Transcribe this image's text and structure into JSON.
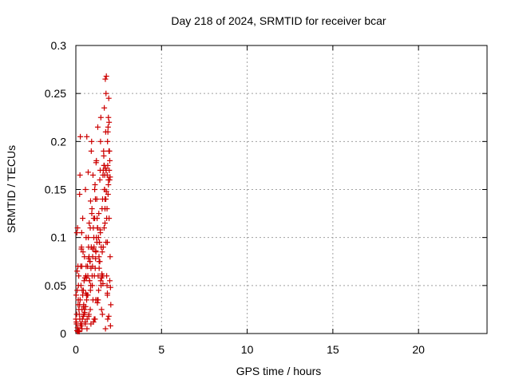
{
  "chart_data": {
    "type": "scatter",
    "title": "Day 218 of 2024, SRMTID for receiver bcar",
    "xlabel": "GPS time / hours",
    "ylabel": "SRMTID / TECUs",
    "xlim": [
      0,
      24
    ],
    "ylim": [
      0,
      0.3
    ],
    "x_ticks": [
      0,
      5,
      10,
      15,
      20
    ],
    "y_ticks": [
      0,
      0.05,
      0.1,
      0.15,
      0.2,
      0.25,
      0.3
    ],
    "x_tick_labels": [
      "0",
      "5",
      "10",
      "15",
      "20"
    ],
    "y_tick_labels": [
      "0",
      "0.05",
      "0.1",
      "0.15",
      "0.2",
      "0.25",
      "0.3"
    ],
    "grid": true,
    "marker": "plus",
    "color": "#cc0000",
    "series": [
      {
        "x": [
          0.0,
          0.02,
          0.04,
          0.06,
          0.08,
          0.1,
          0.12,
          0.14,
          0.16,
          0.18,
          0.2,
          0.22,
          0.24,
          0.26,
          0.28,
          0.3,
          0.32,
          0.34,
          0.36,
          0.38,
          0.4,
          0.42,
          0.44,
          0.46,
          0.48,
          0.5,
          0.52,
          0.54,
          0.56,
          0.58,
          0.6,
          0.62,
          0.64,
          0.66,
          0.68,
          0.7,
          0.72,
          0.74,
          0.76,
          0.78,
          0.8,
          0.82,
          0.84,
          0.86,
          0.88,
          0.9,
          0.92,
          0.94,
          0.96,
          0.98,
          1.0,
          1.02,
          1.04,
          1.06,
          1.08,
          1.1,
          1.12,
          1.14,
          1.16,
          1.18,
          1.2,
          1.22,
          1.24,
          1.26,
          1.28,
          1.3,
          1.32,
          1.34,
          1.36,
          1.38,
          1.4,
          1.42,
          1.44,
          1.46,
          1.48,
          1.5,
          1.52,
          1.54,
          1.56,
          1.58,
          1.6,
          1.62,
          1.64,
          1.66,
          1.68,
          1.7,
          1.72,
          1.74,
          1.76,
          1.78,
          1.8,
          1.82,
          1.84,
          1.86,
          1.88,
          1.9,
          1.92,
          1.94,
          1.96,
          1.98,
          2.0,
          2.02,
          2.04,
          0.05,
          0.15,
          0.25,
          0.35,
          0.45,
          0.55,
          0.65,
          0.75,
          0.85,
          0.95,
          1.05,
          1.15,
          1.25,
          1.35,
          1.45,
          1.55,
          1.65,
          1.75,
          1.85,
          1.95,
          0.1,
          0.3,
          0.5,
          0.7,
          0.9,
          1.1,
          1.3,
          1.5,
          1.7,
          1.9,
          0.2,
          0.4,
          0.6,
          0.8,
          1.0,
          1.2,
          1.4,
          1.6,
          1.8,
          2.0,
          0.03,
          0.13,
          0.23,
          0.33,
          0.43,
          0.53,
          0.63,
          0.73,
          0.83,
          0.93,
          1.03,
          1.13,
          1.23,
          1.33,
          1.43,
          1.53,
          1.63,
          1.73,
          1.83,
          1.93,
          0.07,
          0.17,
          0.27,
          0.37,
          0.47,
          0.57,
          0.67,
          0.77,
          0.87,
          0.97,
          1.07,
          1.17,
          1.27,
          1.37,
          1.47,
          1.57,
          1.67,
          1.77,
          1.87,
          1.97,
          1.82,
          1.86,
          1.9,
          1.78,
          1.74,
          1.84,
          1.88,
          1.94,
          1.7,
          1.66,
          0.12,
          0.36,
          0.58,
          0.84,
          1.12,
          1.36,
          1.58,
          1.84,
          2.02,
          0.22,
          0.48,
          0.74,
          0.98,
          1.26,
          1.52,
          1.76,
          1.98,
          0.08,
          0.34,
          0.62,
          0.88,
          1.16,
          1.42,
          1.68,
          1.92
        ],
        "y": [
          0.015,
          0.04,
          0.01,
          0.105,
          0.065,
          0.11,
          0.002,
          0.035,
          0.003,
          0.025,
          0.02,
          0.145,
          0.165,
          0.205,
          0.07,
          0.05,
          0.088,
          0.01,
          0.005,
          0.015,
          0.12,
          0.085,
          0.045,
          0.03,
          0.02,
          0.08,
          0.022,
          0.01,
          0.15,
          0.06,
          0.1,
          0.04,
          0.205,
          0.015,
          0.07,
          0.04,
          0.168,
          0.09,
          0.02,
          0.115,
          0.055,
          0.075,
          0.11,
          0.138,
          0.01,
          0.19,
          0.2,
          0.13,
          0.05,
          0.08,
          0.165,
          0.11,
          0.12,
          0.09,
          0.06,
          0.15,
          0.155,
          0.14,
          0.035,
          0.178,
          0.18,
          0.14,
          0.12,
          0.11,
          0.215,
          0.06,
          0.1,
          0.125,
          0.075,
          0.095,
          0.16,
          0.17,
          0.2,
          0.225,
          0.09,
          0.025,
          0.06,
          0.085,
          0.14,
          0.165,
          0.17,
          0.19,
          0.175,
          0.235,
          0.15,
          0.115,
          0.265,
          0.21,
          0.25,
          0.268,
          0.06,
          0.05,
          0.04,
          0.015,
          0.215,
          0.225,
          0.245,
          0.22,
          0.19,
          0.18,
          0.163,
          0.048,
          0.03,
          0.02,
          0.05,
          0.035,
          0.07,
          0.028,
          0.012,
          0.005,
          0.018,
          0.045,
          0.06,
          0.1,
          0.078,
          0.035,
          0.08,
          0.055,
          0.02,
          0.11,
          0.14,
          0.2,
          0.17,
          0.006,
          0.008,
          0.025,
          0.06,
          0.09,
          0.12,
          0.035,
          0.058,
          0.13,
          0.155,
          0.002,
          0.04,
          0.07,
          0.055,
          0.035,
          0.1,
          0.075,
          0.09,
          0.12,
          0.08,
          0.012,
          0.03,
          0.015,
          0.09,
          0.018,
          0.058,
          0.035,
          0.1,
          0.075,
          0.125,
          0.012,
          0.068,
          0.095,
          0.045,
          0.105,
          0.13,
          0.185,
          0.005,
          0.165,
          0.19,
          0.003,
          0.06,
          0.01,
          0.045,
          0.02,
          0.028,
          0.04,
          0.08,
          0.05,
          0.07,
          0.015,
          0.085,
          0.11,
          0.095,
          0.05,
          0.06,
          0.15,
          0.17,
          0.21,
          0.16,
          0.13,
          0.175,
          0.16,
          0.148,
          0.172,
          0.095,
          0.145,
          0.12,
          0.14,
          0.175,
          0.07,
          0.025,
          0.042,
          0.025,
          0.015,
          0.068,
          0.052,
          0.042,
          0.008,
          0.03,
          0.055,
          0.078,
          0.088,
          0.032,
          0.062,
          0.095,
          0.055,
          0.045,
          0.105,
          0.058,
          0.068,
          0.086,
          0.108,
          0.165,
          0.018
        ]
      }
    ]
  }
}
